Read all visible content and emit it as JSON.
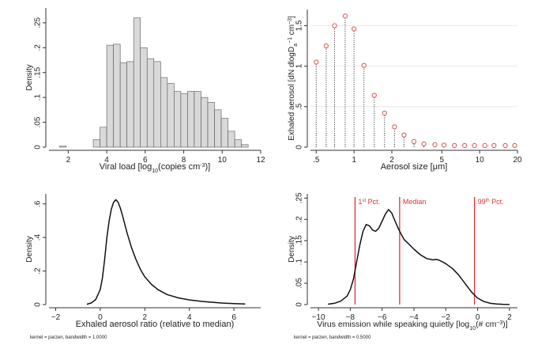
{
  "chart_data": [
    {
      "id": "viral_load",
      "type": "bar",
      "xlabel": "Viral load [log10(copies cm-3)]",
      "xlabel_parts": [
        "Viral load [log",
        "10",
        "(copies cm",
        "-3",
        ")]"
      ],
      "ylabel": "Density",
      "xlim": [
        1,
        12
      ],
      "ylim": [
        0,
        0.28
      ],
      "x_ticks": [
        2,
        4,
        6,
        8,
        10,
        12
      ],
      "x_tick_labels": [
        "2",
        "4",
        "6",
        "8",
        "10",
        "12"
      ],
      "y_ticks": [
        0,
        0.05,
        0.1,
        0.15,
        0.2,
        0.25
      ],
      "y_tick_labels": [
        "0",
        ".05",
        ".1",
        ".15",
        ".2",
        ".25"
      ],
      "bin_width": 0.35,
      "bin_starts": [
        1.55,
        3.3,
        3.65,
        4.0,
        4.35,
        4.7,
        5.05,
        5.4,
        5.75,
        6.1,
        6.45,
        6.8,
        7.15,
        7.5,
        7.85,
        8.2,
        8.55,
        8.9,
        9.25,
        9.6,
        9.95,
        10.3,
        10.65,
        11.0
      ],
      "values": [
        0.002,
        0.015,
        0.04,
        0.205,
        0.207,
        0.17,
        0.172,
        0.26,
        0.2,
        0.178,
        0.172,
        0.14,
        0.128,
        0.112,
        0.108,
        0.112,
        0.112,
        0.1,
        0.09,
        0.075,
        0.058,
        0.032,
        0.015,
        0.005
      ]
    },
    {
      "id": "aerosol_size",
      "type": "scatter",
      "style": "dropline",
      "xlabel": "Aerosol size [μm]",
      "ylabel": "Exhaled aerosol [dN dlogDa-1 cm-3]",
      "ylabel_parts": [
        "Exhaled aerosol [dN dlogD",
        "a",
        "",
        "−1",
        " cm",
        "−3",
        "]"
      ],
      "xscale": "log",
      "xlim": [
        0.45,
        20
      ],
      "ylim": [
        0,
        1.7
      ],
      "x_ticks": [
        0.5,
        1,
        2,
        5,
        10,
        20
      ],
      "x_tick_labels": [
        ".5",
        "1",
        "2",
        "5",
        "10",
        "20"
      ],
      "y_ticks": [
        0,
        0.5,
        1,
        1.5
      ],
      "y_tick_labels": [
        "0",
        ".5",
        "1",
        "1.5"
      ],
      "grid": true,
      "x": [
        0.5,
        0.6,
        0.7,
        0.85,
        1.0,
        1.2,
        1.45,
        1.75,
        2.1,
        2.5,
        3.0,
        3.6,
        4.4,
        5.2,
        6.3,
        7.6,
        9.1,
        11,
        13,
        16,
        19
      ],
      "y": [
        1.05,
        1.25,
        1.5,
        1.62,
        1.46,
        1.01,
        0.64,
        0.42,
        0.25,
        0.15,
        0.07,
        0.04,
        0.03,
        0.025,
        0.02,
        0.02,
        0.02,
        0.02,
        0.02,
        0.02,
        0.02
      ],
      "marker_color": "#e05a5a"
    },
    {
      "id": "aerosol_ratio",
      "type": "line",
      "xlabel": "Exhaled aerosol ratio (relative to median)",
      "ylabel": "Density",
      "xlim": [
        -2.3,
        7.2
      ],
      "ylim": [
        0,
        0.66
      ],
      "x_ticks": [
        -2,
        0,
        2,
        4,
        6
      ],
      "x_tick_labels": [
        "−2",
        "0",
        "2",
        "4",
        "6"
      ],
      "y_ticks": [
        0,
        0.2,
        0.4,
        0.6
      ],
      "y_tick_labels": [
        "0",
        ".2",
        ".4",
        ".6"
      ],
      "note": "kernel = parzen, bandwidth = 1.0000",
      "x": [
        -0.6,
        -0.4,
        -0.2,
        0.0,
        0.1,
        0.2,
        0.3,
        0.4,
        0.5,
        0.6,
        0.7,
        0.8,
        0.9,
        1.0,
        1.2,
        1.4,
        1.6,
        1.8,
        2.0,
        2.3,
        2.6,
        3.0,
        3.5,
        4.0,
        4.5,
        5.0,
        5.5,
        6.0,
        6.5
      ],
      "y": [
        0.002,
        0.01,
        0.03,
        0.09,
        0.16,
        0.27,
        0.4,
        0.5,
        0.57,
        0.61,
        0.625,
        0.61,
        0.575,
        0.53,
        0.43,
        0.34,
        0.27,
        0.21,
        0.165,
        0.12,
        0.088,
        0.06,
        0.04,
        0.028,
        0.02,
        0.014,
        0.009,
        0.006,
        0.004
      ]
    },
    {
      "id": "virus_emission",
      "type": "line",
      "xlabel": "Virus emission while speaking quietly [log10(# cm-3)]",
      "xlabel_parts": [
        "Virus emission while speaking quietly [log",
        "10",
        "(# cm",
        "−3",
        ")]"
      ],
      "ylabel": "Density",
      "xlim": [
        -10.5,
        2.5
      ],
      "ylim": [
        0,
        0.26
      ],
      "x_ticks": [
        -10,
        -8,
        -6,
        -4,
        -2,
        0,
        2
      ],
      "x_tick_labels": [
        "−10",
        "−8",
        "−6",
        "−4",
        "−2",
        "0",
        "2"
      ],
      "y_ticks": [
        0,
        0.05,
        0.1,
        0.15,
        0.2,
        0.25
      ],
      "y_tick_labels": [
        "0",
        ".05",
        ".1",
        ".15",
        ".2",
        ".25"
      ],
      "note": "kernel = parzen, bandwidth = 0.5000",
      "x": [
        -9.4,
        -9.0,
        -8.6,
        -8.2,
        -8.0,
        -7.8,
        -7.6,
        -7.4,
        -7.2,
        -7.0,
        -6.8,
        -6.6,
        -6.4,
        -6.2,
        -6.0,
        -5.8,
        -5.6,
        -5.4,
        -5.2,
        -5.0,
        -4.8,
        -4.6,
        -4.4,
        -4.0,
        -3.6,
        -3.2,
        -2.8,
        -2.6,
        -2.4,
        -2.0,
        -1.6,
        -1.2,
        -0.8,
        -0.4,
        0.0,
        0.4,
        0.8,
        1.2,
        1.6,
        2.0
      ],
      "y": [
        0.001,
        0.003,
        0.008,
        0.02,
        0.035,
        0.06,
        0.1,
        0.14,
        0.172,
        0.188,
        0.185,
        0.175,
        0.172,
        0.18,
        0.196,
        0.212,
        0.223,
        0.215,
        0.197,
        0.18,
        0.165,
        0.152,
        0.145,
        0.13,
        0.117,
        0.108,
        0.105,
        0.106,
        0.104,
        0.096,
        0.085,
        0.07,
        0.05,
        0.03,
        0.015,
        0.007,
        0.003,
        0.0015,
        0.0005,
        0.0002
      ],
      "reference_lines": [
        {
          "x": -7.7,
          "label_main": "1",
          "label_sup": "st",
          "label_rest": " Pct."
        },
        {
          "x": -4.9,
          "label_main": "Median",
          "label_sup": "",
          "label_rest": ""
        },
        {
          "x": -0.2,
          "label_main": "99",
          "label_sup": "th",
          "label_rest": " Pct."
        }
      ],
      "reference_color": "#e0303a"
    }
  ]
}
